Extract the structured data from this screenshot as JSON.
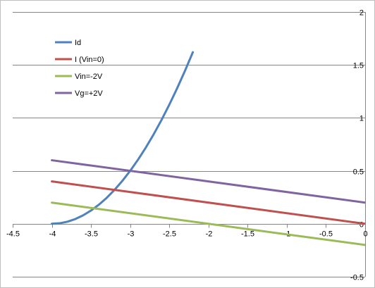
{
  "chart_data": {
    "type": "line",
    "title": "",
    "xlabel": "",
    "ylabel": "",
    "xlim": [
      -4.5,
      0
    ],
    "ylim": [
      -0.5,
      2
    ],
    "x_ticks": [
      "-4.5",
      "-4",
      "-3.5",
      "-3",
      "-2.5",
      "-2",
      "-1.5",
      "-1",
      "-0.5",
      "0"
    ],
    "x_tick_values": [
      -4.5,
      -4,
      -3.5,
      -3,
      -2.5,
      -2,
      -1.5,
      -1,
      -0.5,
      0
    ],
    "y_ticks": [
      "-0.5",
      "0",
      "0.5",
      "1",
      "1.5",
      "2"
    ],
    "y_tick_values": [
      -0.5,
      0,
      0.5,
      1,
      1.5,
      2
    ],
    "grid": "horizontal",
    "legend_position": "top-left",
    "series": [
      {
        "name": "Id",
        "color": "#4f81bd",
        "x": [
          -4,
          -3.9,
          -3.8,
          -3.7,
          -3.6,
          -3.5,
          -3.4,
          -3.3,
          -3.2,
          -3.1,
          -3.0,
          -2.9,
          -2.8,
          -2.7,
          -2.6,
          -2.5,
          -2.4,
          -2.3,
          -2.2
        ],
        "y": [
          0,
          0.005,
          0.02,
          0.045,
          0.08,
          0.125,
          0.18,
          0.245,
          0.32,
          0.405,
          0.5,
          0.605,
          0.72,
          0.845,
          0.98,
          1.125,
          1.28,
          1.445,
          1.62
        ]
      },
      {
        "name": "I (Vin=0)",
        "color": "#c0504d",
        "x": [
          -4,
          0
        ],
        "y": [
          0.4,
          0
        ]
      },
      {
        "name": "Vin=-2V",
        "color": "#9bbb59",
        "x": [
          -4,
          0
        ],
        "y": [
          0.2,
          -0.2
        ]
      },
      {
        "name": "Vg=+2V",
        "color": "#8064a2",
        "x": [
          -4,
          0
        ],
        "y": [
          0.6,
          0.2
        ]
      }
    ]
  }
}
